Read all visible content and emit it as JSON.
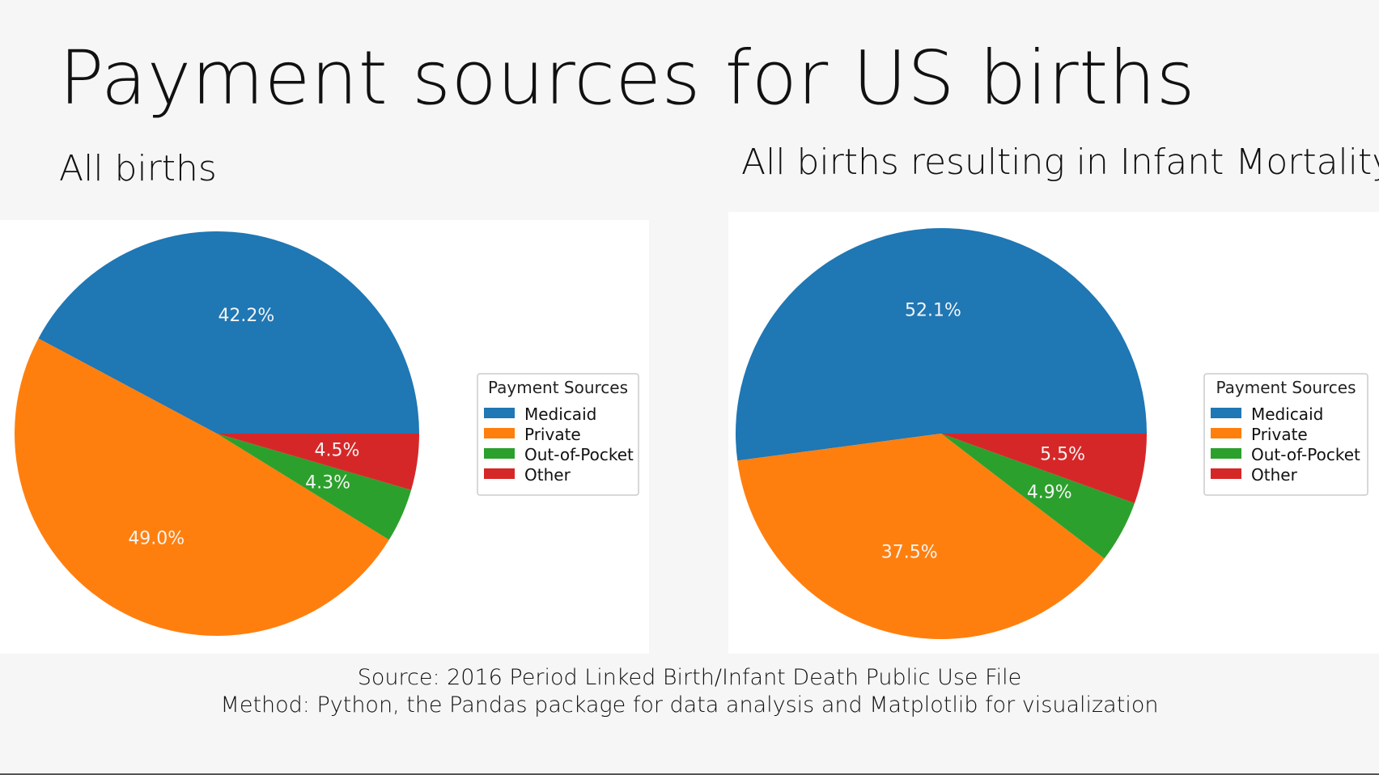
{
  "slide": {
    "title": "Payment sources for US births",
    "source_line": "Source: 2016 Period Linked Birth/Infant Death Public Use File",
    "method_line": "Method: Python, the Pandas package for data analysis and Matplotlib for visualization"
  },
  "colors": {
    "Medicaid": "#1f77b4",
    "Private": "#ff7f0e",
    "Out-of-Pocket": "#2ca02c",
    "Other": "#d62728"
  },
  "chart_data": [
    {
      "type": "pie",
      "title": "All births",
      "legend_title": "Payment Sources",
      "legend_position": "right",
      "labels": [
        "Medicaid",
        "Private",
        "Out-of-Pocket",
        "Other"
      ],
      "values": [
        42.2,
        49.0,
        4.3,
        4.5
      ],
      "value_labels": [
        "42.2%",
        "49.0%",
        "4.3%",
        "4.5%"
      ],
      "start_angle_deg": 0,
      "direction": "counterclockwise"
    },
    {
      "type": "pie",
      "title": "All births resulting in Infant Mortality",
      "legend_title": "Payment Sources",
      "legend_position": "right",
      "labels": [
        "Medicaid",
        "Private",
        "Out-of-Pocket",
        "Other"
      ],
      "values": [
        52.1,
        37.5,
        4.9,
        5.5
      ],
      "value_labels": [
        "52.1%",
        "37.5%",
        "4.9%",
        "5.5%"
      ],
      "start_angle_deg": 0,
      "direction": "counterclockwise"
    }
  ]
}
